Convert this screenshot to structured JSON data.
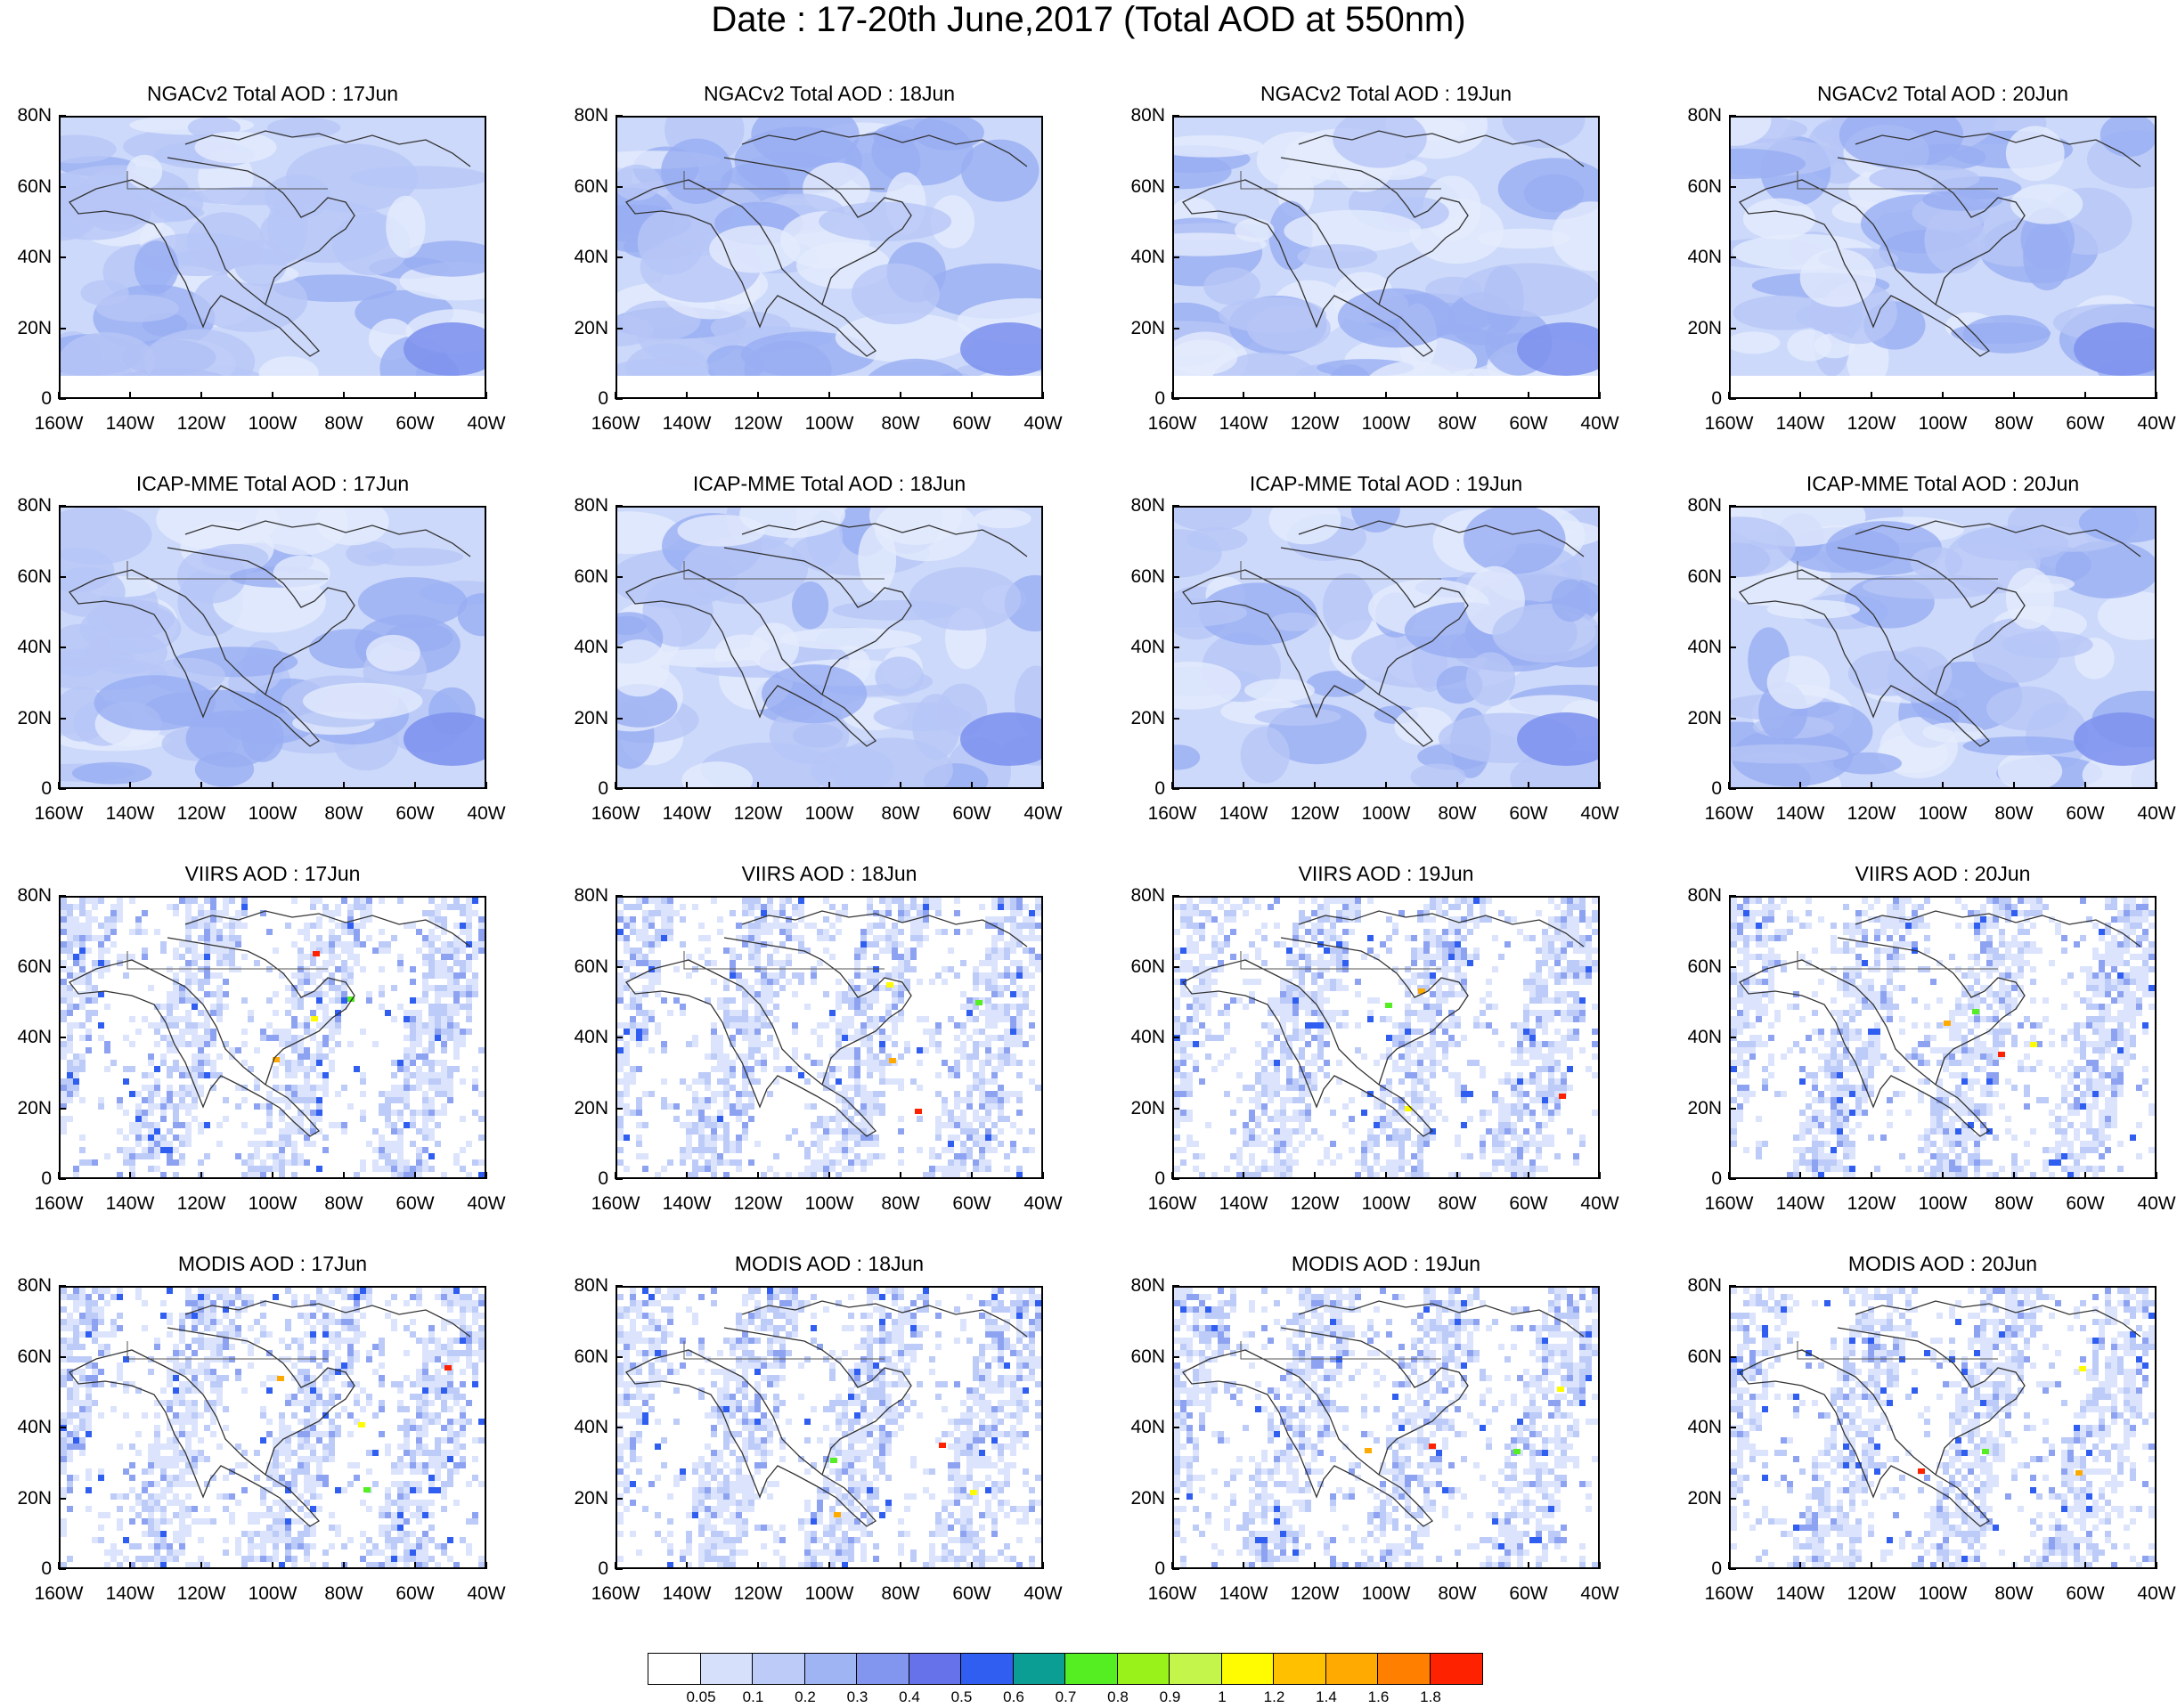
{
  "title": "Date : 17-20th June,2017 (Total AOD at 550nm)",
  "lat_labels": [
    "80N",
    "60N",
    "40N",
    "20N",
    "0"
  ],
  "lon_labels": [
    "160W",
    "140W",
    "120W",
    "100W",
    "80W",
    "60W",
    "40W"
  ],
  "rows": [
    {
      "label": "NGACv2 Total AOD",
      "style": "model_a"
    },
    {
      "label": "ICAP-MME Total AOD",
      "style": "model_b"
    },
    {
      "label": "VIIRS AOD",
      "style": "sat_a"
    },
    {
      "label": "MODIS AOD",
      "style": "sat_b"
    }
  ],
  "panels": [
    [
      "NGACv2 Total AOD : 17Jun",
      "NGACv2 Total AOD : 18Jun",
      "NGACv2 Total AOD : 19Jun",
      "NGACv2 Total AOD : 20Jun"
    ],
    [
      "ICAP-MME Total AOD : 17Jun",
      "ICAP-MME Total AOD : 18Jun",
      "ICAP-MME Total AOD : 19Jun",
      "ICAP-MME Total AOD : 20Jun"
    ],
    [
      "VIIRS AOD : 17Jun",
      "VIIRS AOD : 18Jun",
      "VIIRS AOD : 19Jun",
      "VIIRS AOD : 20Jun"
    ],
    [
      "MODIS AOD : 17Jun",
      "MODIS AOD : 18Jun",
      "MODIS AOD : 19Jun",
      "MODIS AOD : 20Jun"
    ]
  ],
  "colorbar": {
    "colors": [
      "#ffffff",
      "#d6e0fb",
      "#bccbf7",
      "#9fb4f3",
      "#8296ef",
      "#6672ea",
      "#2f5ef0",
      "#0b9e94",
      "#55ee22",
      "#99f21a",
      "#c3f54a",
      "#fffb00",
      "#ffc000",
      "#ffaa00",
      "#ff7f00",
      "#ff2200"
    ],
    "labels": [
      "0.05",
      "0.1",
      "0.2",
      "0.3",
      "0.4",
      "0.5",
      "0.6",
      "0.7",
      "0.8",
      "0.9",
      "1",
      "1.2",
      "1.4",
      "1.6",
      "1.8"
    ]
  }
}
